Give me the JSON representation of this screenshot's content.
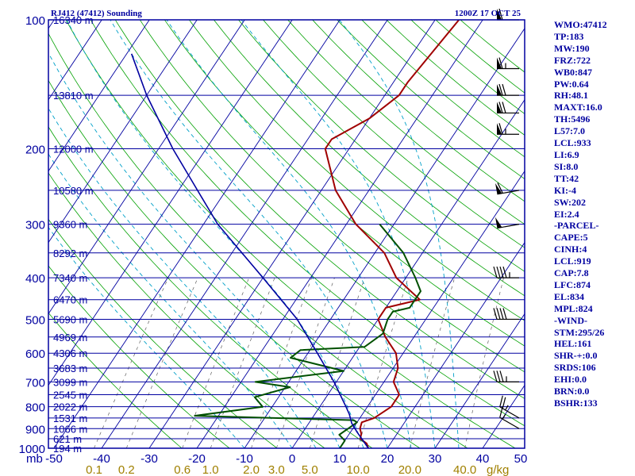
{
  "title_left": "RJ412 (47412) Sounding",
  "title_right": "1200Z 17 OCT 25",
  "pressure_unit_label": "mb",
  "mixing_unit_label": "g/kg",
  "colors": {
    "frame": "#0000a0",
    "isotherm": "#0000a0",
    "dry_adiabat": "#00a000",
    "moist_adiabat": "#00a0c8",
    "mixing_ratio": "#606060",
    "temperature": "#a00000",
    "dewpoint": "#005000",
    "parcel": "#0000a0",
    "mixing_label": "#a08000"
  },
  "indices": [
    "WMO:47412",
    "TP:183",
    "MW:190",
    "FRZ:722",
    "WB0:847",
    "PW:0.64",
    "RH:48.1",
    "MAXT:16.0",
    "TH:5496",
    "L57:7.0",
    "LCL:933",
    "LI:6.9",
    "SI:8.0",
    "TT:42",
    "KI:-4",
    "SW:202",
    "EI:2.4",
    "-PARCEL-",
    "CAPE:5",
    "CINH:4",
    "LCL:919",
    "CAP:7.8",
    "LFC:874",
    "EL:834",
    "MPL:824",
    "-WIND-",
    "STM:295/26",
    "HEL:161",
    "SHR-+:0.0",
    "SRDS:106",
    "EHI:0.0",
    "BRN:0.0",
    "BSHR:133"
  ],
  "chart_data": {
    "type": "line",
    "diagram": "skew-T log-P",
    "y_scale": "log",
    "ylim": [
      1000,
      100
    ],
    "xlim": [
      -50,
      50
    ],
    "pressure_ticks": [
      {
        "p": 100,
        "label": "100"
      },
      {
        "p": 200,
        "label": "200"
      },
      {
        "p": 300,
        "label": "300"
      },
      {
        "p": 400,
        "label": "400"
      },
      {
        "p": 500,
        "label": "500"
      },
      {
        "p": 600,
        "label": "600"
      },
      {
        "p": 700,
        "label": "700"
      },
      {
        "p": 800,
        "label": "800"
      },
      {
        "p": 900,
        "label": "900"
      },
      {
        "p": 1000,
        "label": "1000"
      }
    ],
    "height_labels": [
      {
        "p": 100,
        "label": "16340 m"
      },
      {
        "p": 150,
        "label": "13810 m"
      },
      {
        "p": 200,
        "label": "12000 m"
      },
      {
        "p": 250,
        "label": "10580 m"
      },
      {
        "p": 300,
        "label": "9360 m"
      },
      {
        "p": 350,
        "label": "8292 m"
      },
      {
        "p": 400,
        "label": "7340 m"
      },
      {
        "p": 450,
        "label": "6470 m"
      },
      {
        "p": 500,
        "label": "5690 m"
      },
      {
        "p": 550,
        "label": "4969 m"
      },
      {
        "p": 600,
        "label": "4306 m"
      },
      {
        "p": 650,
        "label": "3683 m"
      },
      {
        "p": 700,
        "label": "3099 m"
      },
      {
        "p": 750,
        "label": "2545 m"
      },
      {
        "p": 800,
        "label": "2022 m"
      },
      {
        "p": 850,
        "label": "1531 m"
      },
      {
        "p": 900,
        "label": "1066 m"
      },
      {
        "p": 950,
        "label": "621 m"
      },
      {
        "p": 1000,
        "label": "194 m"
      }
    ],
    "temperature_ticks": [
      {
        "t": -50,
        "label": "-50"
      },
      {
        "t": -40,
        "label": "-40"
      },
      {
        "t": -30,
        "label": "-30"
      },
      {
        "t": -20,
        "label": "-20"
      },
      {
        "t": -10,
        "label": "-10"
      },
      {
        "t": 0,
        "label": "0"
      },
      {
        "t": 10,
        "label": "10"
      },
      {
        "t": 20,
        "label": "20"
      },
      {
        "t": 30,
        "label": "30"
      },
      {
        "t": 40,
        "label": "40"
      },
      {
        "t": 50,
        "label": "50"
      }
    ],
    "mixing_ratio_ticks": [
      {
        "w": 0.1,
        "label": "0.1"
      },
      {
        "w": 0.2,
        "label": "0.2"
      },
      {
        "w": 0.6,
        "label": "0.6"
      },
      {
        "w": 1.0,
        "label": "1.0"
      },
      {
        "w": 2.0,
        "label": "2.0"
      },
      {
        "w": 3.0,
        "label": "3.0"
      },
      {
        "w": 5.0,
        "label": "5.0"
      },
      {
        "w": 10.0,
        "label": "10.0"
      },
      {
        "w": 20.0,
        "label": "20.0"
      },
      {
        "w": 40.0,
        "label": "40.0"
      }
    ],
    "series": [
      {
        "key": "temperature",
        "points": [
          [
            1000,
            16
          ],
          [
            975,
            15
          ],
          [
            950,
            13
          ],
          [
            925,
            12.5
          ],
          [
            900,
            11.5
          ],
          [
            870,
            11
          ],
          [
            850,
            13
          ],
          [
            800,
            15
          ],
          [
            750,
            15
          ],
          [
            700,
            12
          ],
          [
            650,
            11
          ],
          [
            600,
            8.5
          ],
          [
            550,
            4
          ],
          [
            500,
            0
          ],
          [
            470,
            0
          ],
          [
            450,
            6
          ],
          [
            400,
            -2
          ],
          [
            350,
            -8
          ],
          [
            300,
            -18
          ],
          [
            250,
            -27
          ],
          [
            200,
            -35
          ],
          [
            190,
            -35
          ],
          [
            170,
            -30
          ],
          [
            150,
            -27
          ],
          [
            140,
            -27
          ],
          [
            100,
            -25
          ]
        ]
      },
      {
        "key": "dewpoint",
        "points": [
          [
            1000,
            10
          ],
          [
            960,
            10
          ],
          [
            930,
            8
          ],
          [
            900,
            9
          ],
          [
            870,
            10
          ],
          [
            860,
            9
          ],
          [
            840,
            -25
          ],
          [
            800,
            -12
          ],
          [
            760,
            -15
          ],
          [
            720,
            -9
          ],
          [
            700,
            -17
          ],
          [
            660,
            0
          ],
          [
            615,
            -13
          ],
          [
            590,
            -12
          ],
          [
            580,
            1
          ],
          [
            540,
            3
          ],
          [
            500,
            2
          ],
          [
            480,
            2
          ],
          [
            470,
            5
          ],
          [
            430,
            5
          ],
          [
            400,
            2
          ],
          [
            350,
            -4
          ],
          [
            300,
            -13
          ]
        ]
      },
      {
        "key": "parcel",
        "points": [
          [
            1000,
            16
          ],
          [
            950,
            13.3
          ],
          [
            919,
            11.5
          ],
          [
            874,
            9
          ],
          [
            834,
            7.3
          ],
          [
            800,
            5.5
          ],
          [
            700,
            -0.5
          ],
          [
            600,
            -8
          ],
          [
            500,
            -17
          ],
          [
            400,
            -30
          ],
          [
            300,
            -47
          ],
          [
            250,
            -56
          ],
          [
            200,
            -67
          ],
          [
            150,
            -80
          ],
          [
            120,
            -89
          ]
        ]
      }
    ],
    "wind_barbs": [
      {
        "p": 900,
        "dir": 300,
        "spd": 15
      },
      {
        "p": 850,
        "dir": 300,
        "spd": 25
      },
      {
        "p": 700,
        "dir": 270,
        "spd": 35
      },
      {
        "p": 500,
        "dir": 270,
        "spd": 40
      },
      {
        "p": 400,
        "dir": 270,
        "spd": 45
      },
      {
        "p": 300,
        "dir": 260,
        "spd": 50
      },
      {
        "p": 250,
        "dir": 260,
        "spd": 60
      },
      {
        "p": 185,
        "dir": 270,
        "spd": 65
      },
      {
        "p": 165,
        "dir": 270,
        "spd": 70
      },
      {
        "p": 150,
        "dir": 270,
        "spd": 70
      },
      {
        "p": 130,
        "dir": 270,
        "spd": 65
      },
      {
        "p": 100,
        "dir": 270,
        "spd": 60
      }
    ]
  }
}
